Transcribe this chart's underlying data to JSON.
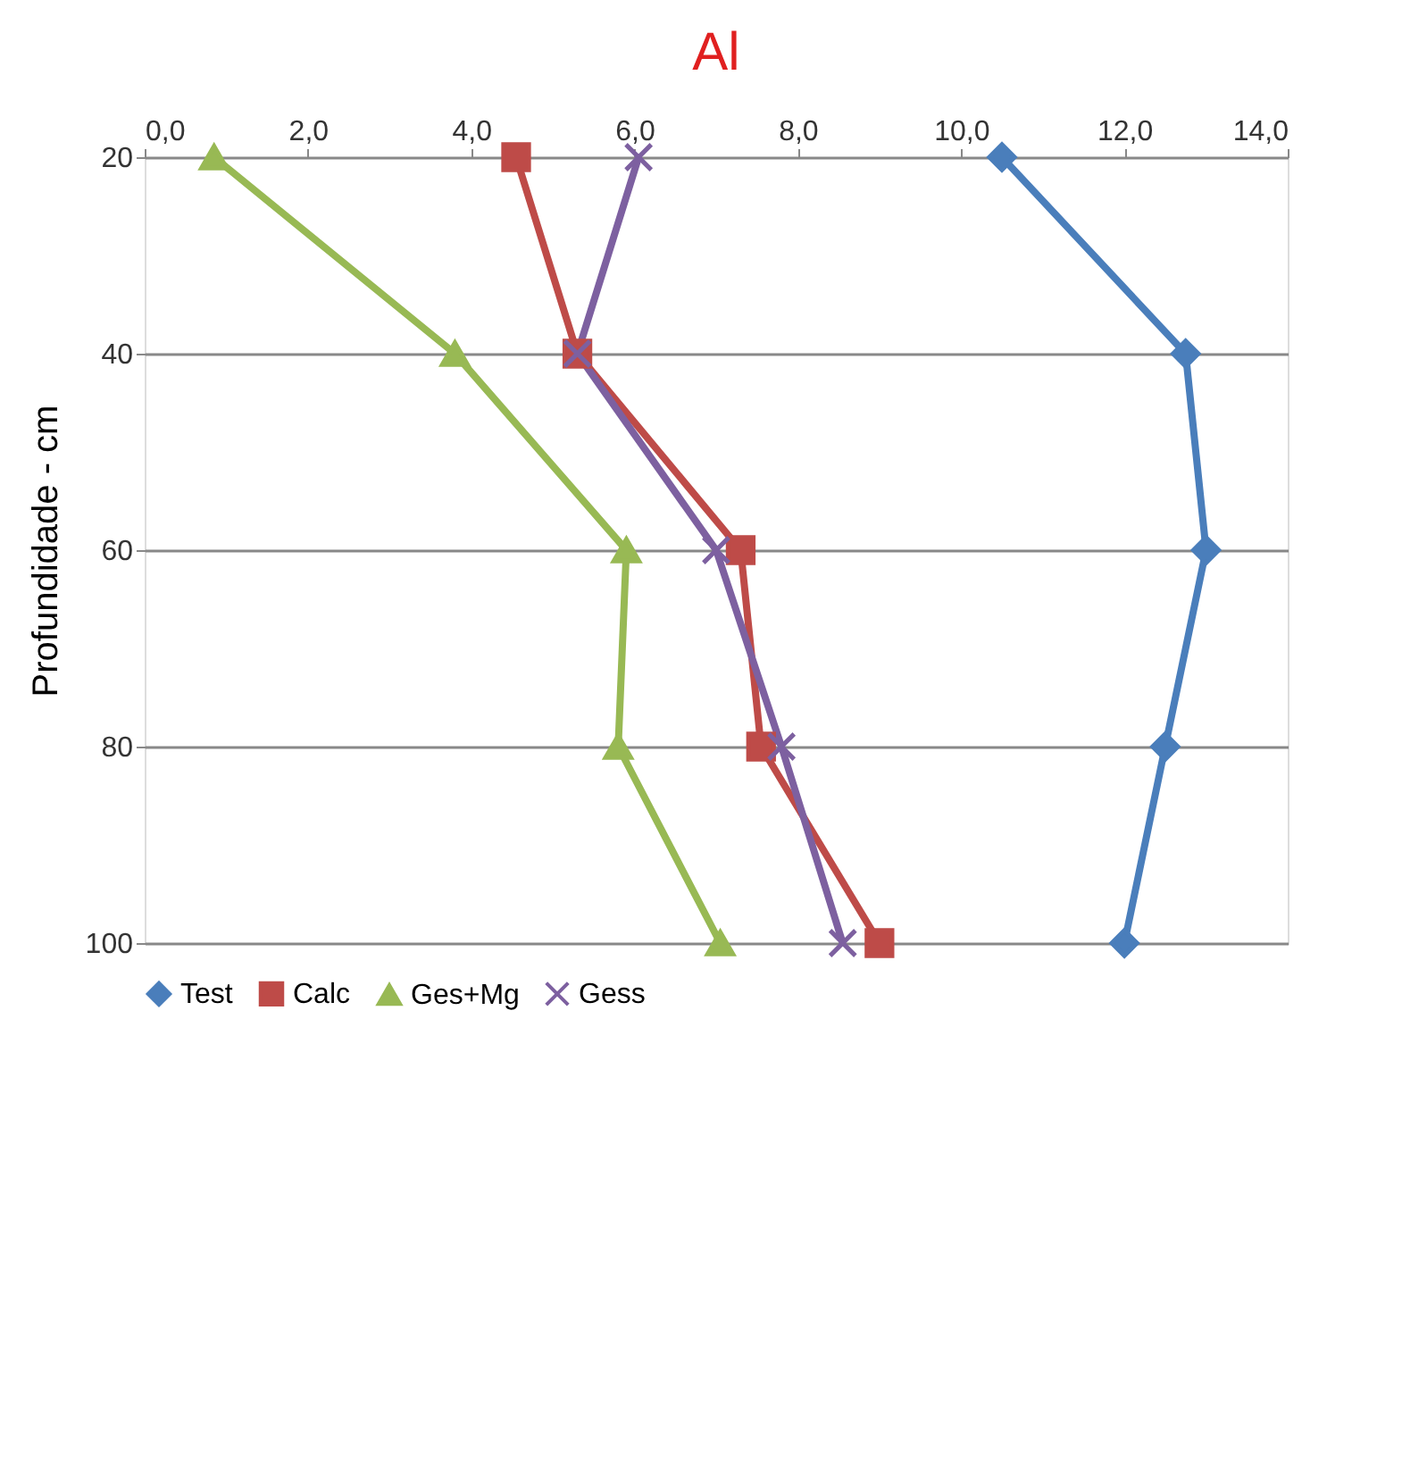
{
  "chart_data": {
    "type": "line",
    "title": "Al",
    "ylabel": "Profundidade - cm",
    "xlim": [
      0,
      14
    ],
    "xticks": [
      {
        "value": 0,
        "label": "0,0"
      },
      {
        "value": 2,
        "label": "2,0"
      },
      {
        "value": 4,
        "label": "4,0"
      },
      {
        "value": 6,
        "label": "6,0"
      },
      {
        "value": 8,
        "label": "8,0"
      },
      {
        "value": 10,
        "label": "10,0"
      },
      {
        "value": 12,
        "label": "12,0"
      },
      {
        "value": 14,
        "label": "14,0"
      }
    ],
    "ylim": [
      100,
      20
    ],
    "yticks": [
      20,
      40,
      60,
      80,
      100
    ],
    "grid": "y",
    "legend": "bottom",
    "line_style": "solid",
    "series": [
      {
        "name": "Test",
        "color": "#4a7ebb",
        "marker": "diamond",
        "x": [
          10.5,
          12.75,
          13.0,
          12.5,
          12.0
        ],
        "values": [
          20,
          40,
          60,
          80,
          100
        ]
      },
      {
        "name": "Calc",
        "color": "#be4b48",
        "marker": "square",
        "x": [
          4.55,
          5.3,
          7.3,
          7.55,
          9.0
        ],
        "values": [
          20,
          40,
          60,
          80,
          100
        ]
      },
      {
        "name": "Ges+Mg",
        "color": "#98b954",
        "marker": "triangle",
        "x": [
          0.85,
          3.8,
          5.9,
          5.8,
          7.05
        ],
        "values": [
          20,
          40,
          60,
          80,
          100
        ]
      },
      {
        "name": "Gess",
        "color": "#7d60a0",
        "marker": "cross",
        "x": [
          6.05,
          5.3,
          7.0,
          7.8,
          8.55
        ],
        "values": [
          20,
          40,
          60,
          80,
          100
        ]
      }
    ]
  }
}
